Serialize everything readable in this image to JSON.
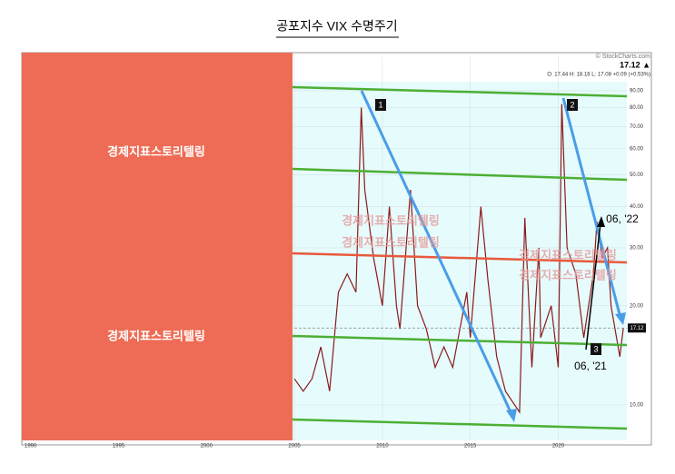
{
  "chart_data": {
    "type": "line",
    "title": "공포지수 VIX 수명주기",
    "source": "© StockCharts.com",
    "last_label": "17.12 ▲",
    "ohlc": "O: 17.44  H: 18.16  L: 17.08  +0.09 (+0.53%)",
    "watermark": "경제지표스토리텔링",
    "annotations": [
      "1",
      "2",
      "3",
      "06, '21",
      "06, '22"
    ],
    "log_scale": true,
    "xlim": [
      1989.5,
      2023.9
    ],
    "xticks": [
      1990,
      1995,
      2000,
      2005,
      2010,
      2015,
      2020
    ],
    "ylim": [
      7.8,
      114.5
    ],
    "yticks": [
      {
        "value": 10,
        "label": "10.00"
      },
      {
        "value": 20,
        "label": "20.00"
      },
      {
        "value": 30,
        "label": "30.00"
      },
      {
        "value": 40,
        "label": "40.00"
      },
      {
        "value": 50,
        "label": "50.00"
      },
      {
        "value": 60,
        "label": "60.00"
      },
      {
        "value": 70,
        "label": "70.00"
      },
      {
        "value": 80,
        "label": "80.00"
      },
      {
        "value": 90,
        "label": "90.00"
      }
    ],
    "series": [
      {
        "name": "VIX",
        "color": "#8b1a1a",
        "x": [
          2005,
          2005.5,
          2006,
          2006.5,
          2007,
          2007.5,
          2008,
          2008.5,
          2008.8,
          2009,
          2009.5,
          2010,
          2010.4,
          2010.8,
          2011,
          2011.6,
          2012,
          2012.5,
          2013,
          2013.5,
          2014,
          2014.8,
          2015,
          2015.6,
          2016,
          2016.5,
          2017,
          2017.8,
          2018.1,
          2018.5,
          2018.9,
          2019,
          2019.6,
          2020,
          2020.2,
          2020.5,
          2021,
          2021.45,
          2022,
          2022.2,
          2022.5,
          2022.8,
          2023,
          2023.5,
          2023.7
        ],
        "values": [
          12,
          11,
          12,
          15,
          11,
          22,
          25,
          22,
          80,
          45,
          28,
          20,
          40,
          20,
          17,
          45,
          20,
          17,
          13,
          15,
          13,
          22,
          16,
          40,
          24,
          14,
          11,
          9.5,
          37,
          13,
          30,
          16,
          20,
          13,
          82,
          30,
          25,
          16,
          25,
          36,
          28,
          30,
          20,
          14,
          17.12
        ]
      }
    ]
  }
}
